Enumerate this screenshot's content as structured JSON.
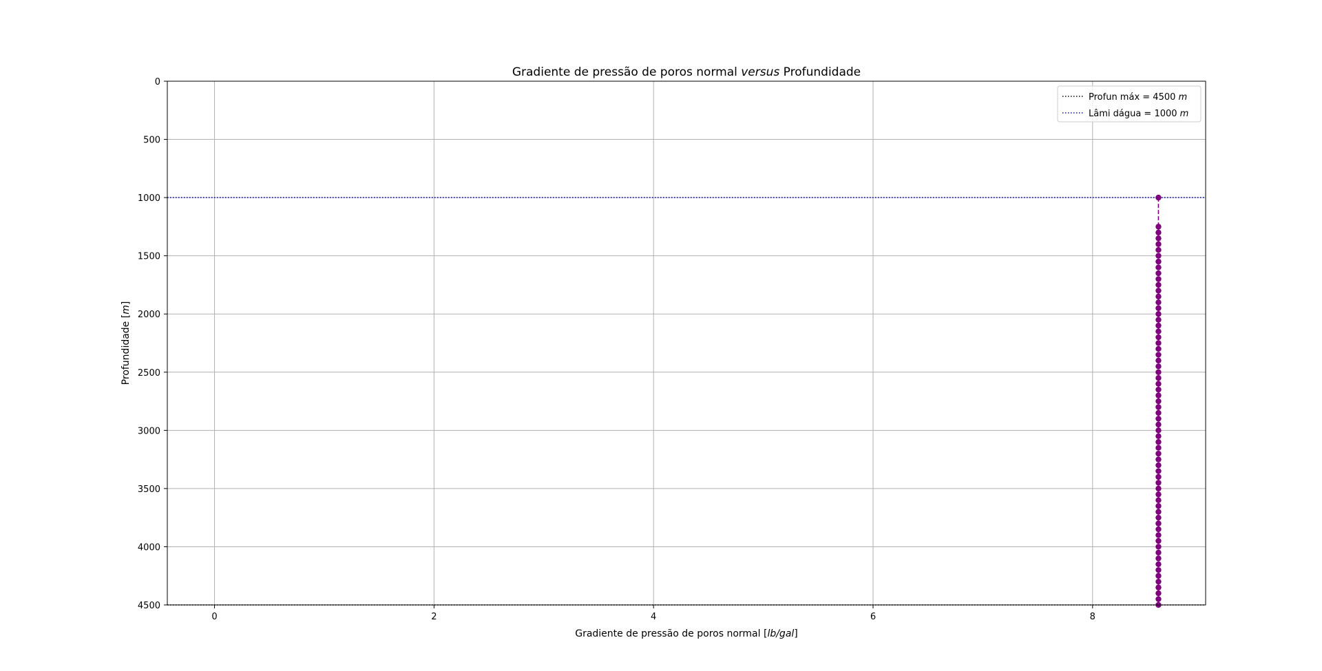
{
  "chart_data": {
    "type": "line",
    "title_parts": [
      "Gradiente de pressão de poros normal ",
      "versus",
      " Profundidade"
    ],
    "xlabel_parts": [
      "Gradiente de pressão de poros normal [",
      "lb/gal",
      "]"
    ],
    "ylabel_parts": [
      "Profundidade [",
      "m",
      "]"
    ],
    "xlim": [
      -0.43,
      9.03
    ],
    "ylim": [
      4500,
      0
    ],
    "y_inverted": true,
    "xticks": [
      0,
      2,
      4,
      6,
      8
    ],
    "yticks": [
      0,
      500,
      1000,
      1500,
      2000,
      2500,
      3000,
      3500,
      4000,
      4500
    ],
    "grid": true,
    "legend_placement": "top-right",
    "reference_lines": [
      {
        "name_parts": [
          "Profun máx = 4500 ",
          "m"
        ],
        "y": 4500,
        "color": "#000000",
        "style": "dotted"
      },
      {
        "name_parts": [
          "Lâmi dágua = 1000 ",
          "m"
        ],
        "y": 1000,
        "color": "#0000ff",
        "style": "dotted"
      }
    ],
    "series": [
      {
        "color": "#800080",
        "line_style": "dashed",
        "marker": "circle",
        "x_constant": 8.6,
        "y": [
          1000,
          1250,
          1300,
          1350,
          1400,
          1450,
          1500,
          1550,
          1600,
          1650,
          1700,
          1750,
          1800,
          1850,
          1900,
          1950,
          2000,
          2050,
          2100,
          2150,
          2200,
          2250,
          2300,
          2350,
          2400,
          2450,
          2500,
          2550,
          2600,
          2650,
          2700,
          2750,
          2800,
          2850,
          2900,
          2950,
          3000,
          3050,
          3100,
          3150,
          3200,
          3250,
          3300,
          3350,
          3400,
          3450,
          3500,
          3550,
          3600,
          3650,
          3700,
          3750,
          3800,
          3850,
          3900,
          3950,
          4000,
          4050,
          4100,
          4150,
          4200,
          4250,
          4300,
          4350,
          4400,
          4450,
          4500
        ]
      }
    ]
  }
}
